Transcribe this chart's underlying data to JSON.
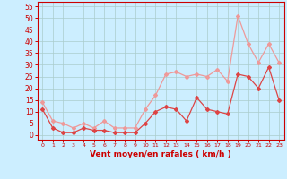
{
  "x": [
    0,
    1,
    2,
    3,
    4,
    5,
    6,
    7,
    8,
    9,
    10,
    11,
    12,
    13,
    14,
    15,
    16,
    17,
    18,
    19,
    20,
    21,
    22,
    23
  ],
  "wind_avg": [
    11,
    3,
    1,
    1,
    3,
    2,
    2,
    1,
    1,
    1,
    5,
    10,
    12,
    11,
    6,
    16,
    11,
    10,
    9,
    26,
    25,
    20,
    29,
    15
  ],
  "wind_gust": [
    14,
    6,
    5,
    3,
    5,
    3,
    6,
    3,
    3,
    3,
    11,
    17,
    26,
    27,
    25,
    26,
    25,
    28,
    23,
    51,
    39,
    31,
    39,
    31
  ],
  "avg_color": "#dd4444",
  "gust_color": "#ee9999",
  "bg_color": "#cceeff",
  "grid_color": "#aacccc",
  "axis_color": "#cc0000",
  "xlabel": "Vent moyen/en rafales ( km/h )",
  "ylabel_ticks": [
    0,
    5,
    10,
    15,
    20,
    25,
    30,
    35,
    40,
    45,
    50,
    55
  ],
  "ylim": [
    -2,
    57
  ],
  "xlim": [
    -0.5,
    23.5
  ]
}
